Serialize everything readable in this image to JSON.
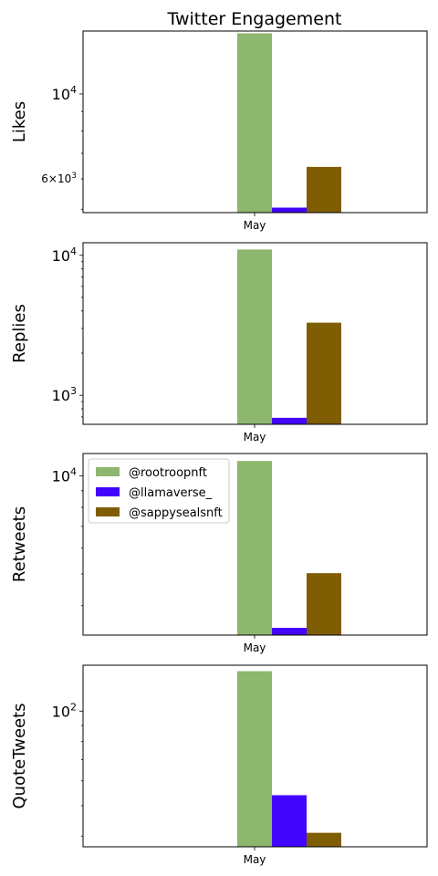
{
  "chart_data": {
    "type": "bar",
    "title": "Twitter Engagement",
    "categories": [
      "May"
    ],
    "series_names": [
      "@rootroopnft",
      "@llamaverse_",
      "@sappysealsnft"
    ],
    "colors": [
      "#8db66e",
      "#4205fb",
      "#7f5d03"
    ],
    "legend": {
      "placement": "top-left",
      "panel": 2
    },
    "yscale": "log",
    "grid": false,
    "panels": [
      {
        "ylabel": "Likes",
        "ylim": [
          4900,
          14600
        ],
        "values": [
          14400,
          5050,
          6450
        ],
        "yticks": [
          {
            "value": 10000,
            "base": "10",
            "exp": "4"
          },
          {
            "value": 6000,
            "base": "6×10",
            "exp": "3"
          }
        ]
      },
      {
        "ylabel": "Replies",
        "ylim": [
          620,
          12300
        ],
        "values": [
          11000,
          690,
          3300
        ],
        "yticks": [
          {
            "value": 10000,
            "base": "10",
            "exp": "4"
          },
          {
            "value": 1000,
            "base": "10",
            "exp": "3"
          }
        ]
      },
      {
        "ylabel": "Retweets",
        "ylim": [
          3250,
          11700
        ],
        "values": [
          11100,
          3420,
          5030
        ],
        "yticks": [
          {
            "value": 10000,
            "base": "10",
            "exp": "4"
          }
        ]
      },
      {
        "ylabel": "QuoteTweets",
        "ylim": [
          37,
          140
        ],
        "values": [
          134,
          54,
          41
        ],
        "yticks": [
          {
            "value": 100,
            "base": "10",
            "exp": "2"
          }
        ]
      }
    ]
  }
}
